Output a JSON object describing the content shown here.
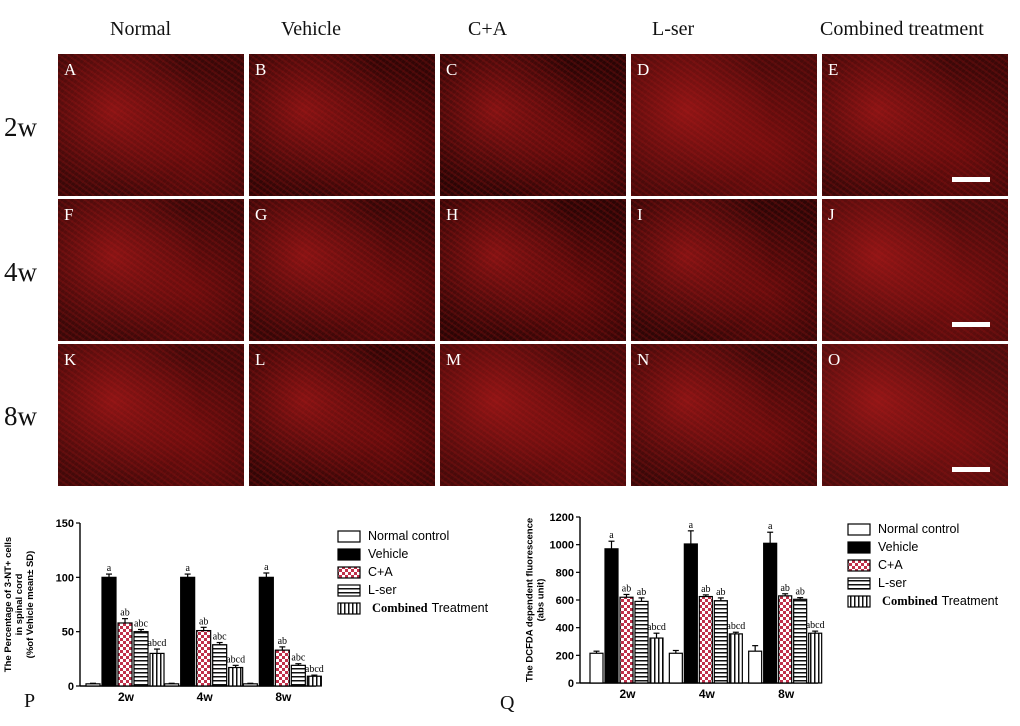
{
  "columns": [
    "Normal",
    "Vehicle",
    "C+A",
    "L-ser",
    "Combined treatment"
  ],
  "rows": [
    "2w",
    "4w",
    "8w"
  ],
  "panel_labels": [
    "A",
    "B",
    "C",
    "D",
    "E",
    "F",
    "G",
    "H",
    "I",
    "J",
    "K",
    "L",
    "M",
    "N",
    "O"
  ],
  "panel_tints": [
    "#3a0808",
    "#320606",
    "#2a0505",
    "#4a0a0a",
    "#3c0808",
    "#3a0808",
    "#360707",
    "#2c0505",
    "#2e0606",
    "#4a0b0b",
    "#420909",
    "#320606",
    "#480a0a",
    "#3a0808",
    "#4e0d0d"
  ],
  "chart_data": [
    {
      "type": "bar",
      "panel_letter": "P",
      "ylabel_lines": [
        "The Percentage of 3-NT+ cells",
        "in spinal cord",
        "(%of Vehicle mean± SD)"
      ],
      "categories": [
        "2w",
        "4w",
        "8w"
      ],
      "ylim": [
        0,
        150
      ],
      "yticks": [
        0,
        50,
        100,
        150
      ],
      "series": [
        {
          "name": "Normal control",
          "values": [
            2,
            2,
            2
          ],
          "errors": [
            0.5,
            0.5,
            0.5
          ],
          "labels": [
            "",
            "",
            ""
          ],
          "fill": "white"
        },
        {
          "name": "Vehicle",
          "values": [
            100,
            100,
            100
          ],
          "errors": [
            3,
            3,
            4
          ],
          "labels": [
            "a",
            "a",
            "a"
          ],
          "fill": "black"
        },
        {
          "name": "C+A",
          "values": [
            58,
            51,
            33
          ],
          "errors": [
            4,
            3,
            3
          ],
          "labels": [
            "ab",
            "ab",
            "ab"
          ],
          "fill": "checker"
        },
        {
          "name": "L-ser",
          "values": [
            50,
            38,
            19
          ],
          "errors": [
            2,
            2,
            1.5
          ],
          "labels": [
            "abc",
            "abc",
            "abc"
          ],
          "fill": "hstripes"
        },
        {
          "name": "Combined Treatment",
          "values": [
            30,
            17,
            9
          ],
          "errors": [
            4,
            2,
            1
          ],
          "labels": [
            "abcd",
            "abcd",
            "abcd"
          ],
          "fill": "vstripes"
        }
      ],
      "legend": [
        "Normal control",
        "Vehicle",
        "C+A",
        "L-ser",
        "Combined Treatment"
      ]
    },
    {
      "type": "bar",
      "panel_letter": "Q",
      "ylabel_lines": [
        "The DCFDA dependent fluorescence",
        "(abs unit)"
      ],
      "categories": [
        "2w",
        "4w",
        "8w"
      ],
      "ylim": [
        0,
        1200
      ],
      "yticks": [
        0,
        200,
        400,
        600,
        800,
        1000,
        1200
      ],
      "series": [
        {
          "name": "Normal control",
          "values": [
            215,
            215,
            230
          ],
          "errors": [
            15,
            20,
            40
          ],
          "labels": [
            "",
            "",
            ""
          ],
          "fill": "white"
        },
        {
          "name": "Vehicle",
          "values": [
            970,
            1005,
            1010
          ],
          "errors": [
            55,
            95,
            80
          ],
          "labels": [
            "a",
            "a",
            "a"
          ],
          "fill": "black"
        },
        {
          "name": "C+A",
          "values": [
            620,
            625,
            630
          ],
          "errors": [
            20,
            12,
            15
          ],
          "labels": [
            "ab",
            "ab",
            "ab"
          ],
          "fill": "checker"
        },
        {
          "name": "L-ser",
          "values": [
            590,
            595,
            605
          ],
          "errors": [
            25,
            20,
            12
          ],
          "labels": [
            "ab",
            "ab",
            "ab"
          ],
          "fill": "hstripes"
        },
        {
          "name": "Combined Treatment",
          "values": [
            325,
            355,
            360
          ],
          "errors": [
            35,
            12,
            15
          ],
          "labels": [
            "abcd",
            "abcd",
            "abcd"
          ],
          "fill": "vstripes"
        }
      ],
      "legend": [
        "Normal control",
        "Vehicle",
        "C+A",
        "L-ser",
        "Combined Treatment"
      ]
    }
  ]
}
